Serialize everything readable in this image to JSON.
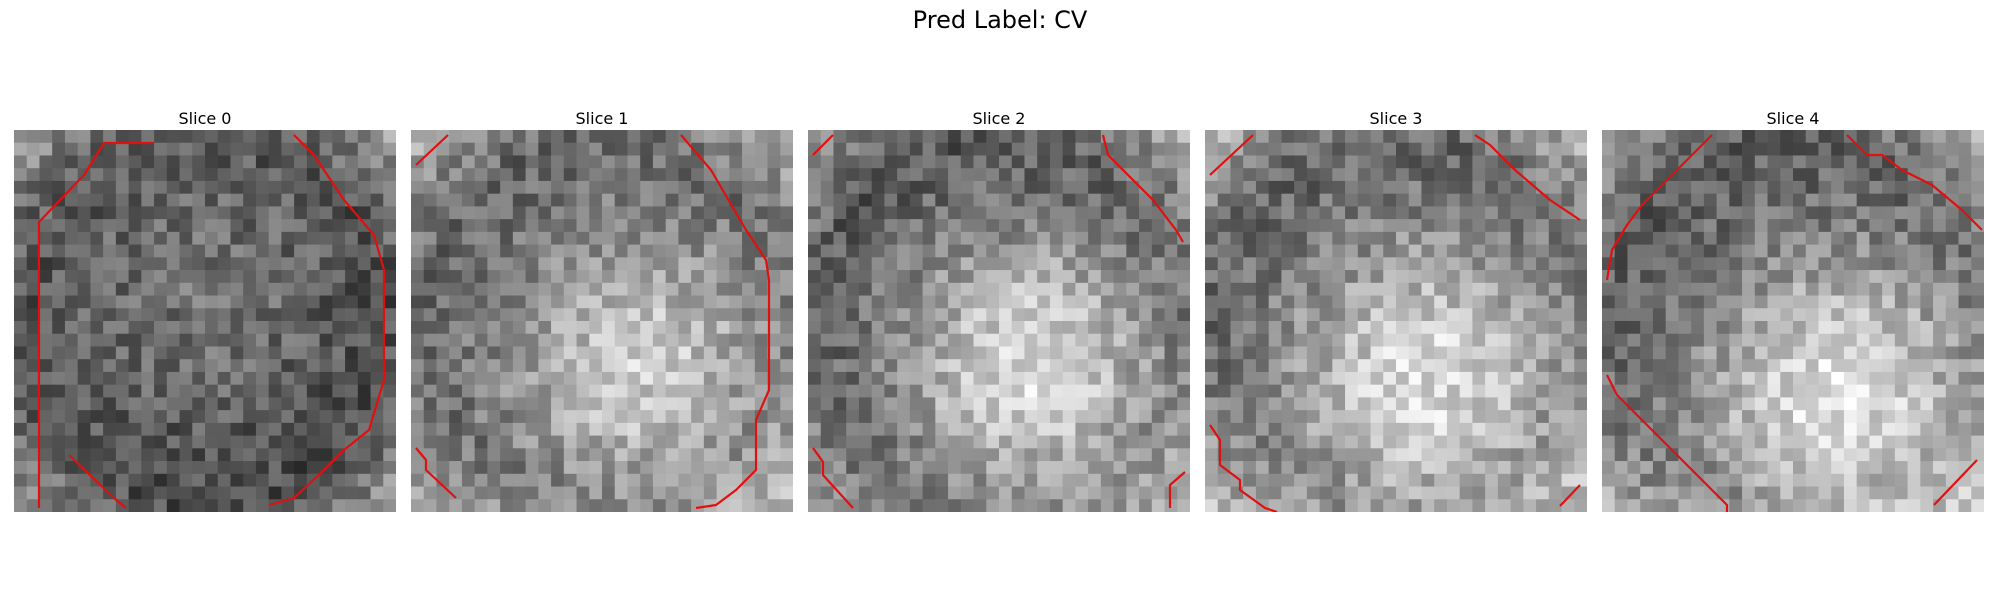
{
  "figure": {
    "suptitle": "Pred Label: CV"
  },
  "panels": [
    {
      "title": "Slice 0",
      "seed": 11,
      "bright_center": [
        0.48,
        0.42
      ],
      "bright_sigma": 0.3,
      "bright_amp": 0.18,
      "base": 0.27
    },
    {
      "title": "Slice 1",
      "seed": 23,
      "bright_center": [
        0.6,
        0.62
      ],
      "bright_sigma": 0.26,
      "bright_amp": 0.42,
      "base": 0.38
    },
    {
      "title": "Slice 2",
      "seed": 37,
      "bright_center": [
        0.58,
        0.62
      ],
      "bright_sigma": 0.28,
      "bright_amp": 0.55,
      "base": 0.3
    },
    {
      "title": "Slice 3",
      "seed": 41,
      "bright_center": [
        0.58,
        0.66
      ],
      "bright_sigma": 0.28,
      "bright_amp": 0.5,
      "base": 0.36
    },
    {
      "title": "Slice 4",
      "seed": 53,
      "bright_center": [
        0.62,
        0.7
      ],
      "bright_sigma": 0.28,
      "bright_amp": 0.55,
      "base": 0.34
    }
  ],
  "colors": {
    "contour": "#e01010",
    "background": "#ffffff"
  }
}
